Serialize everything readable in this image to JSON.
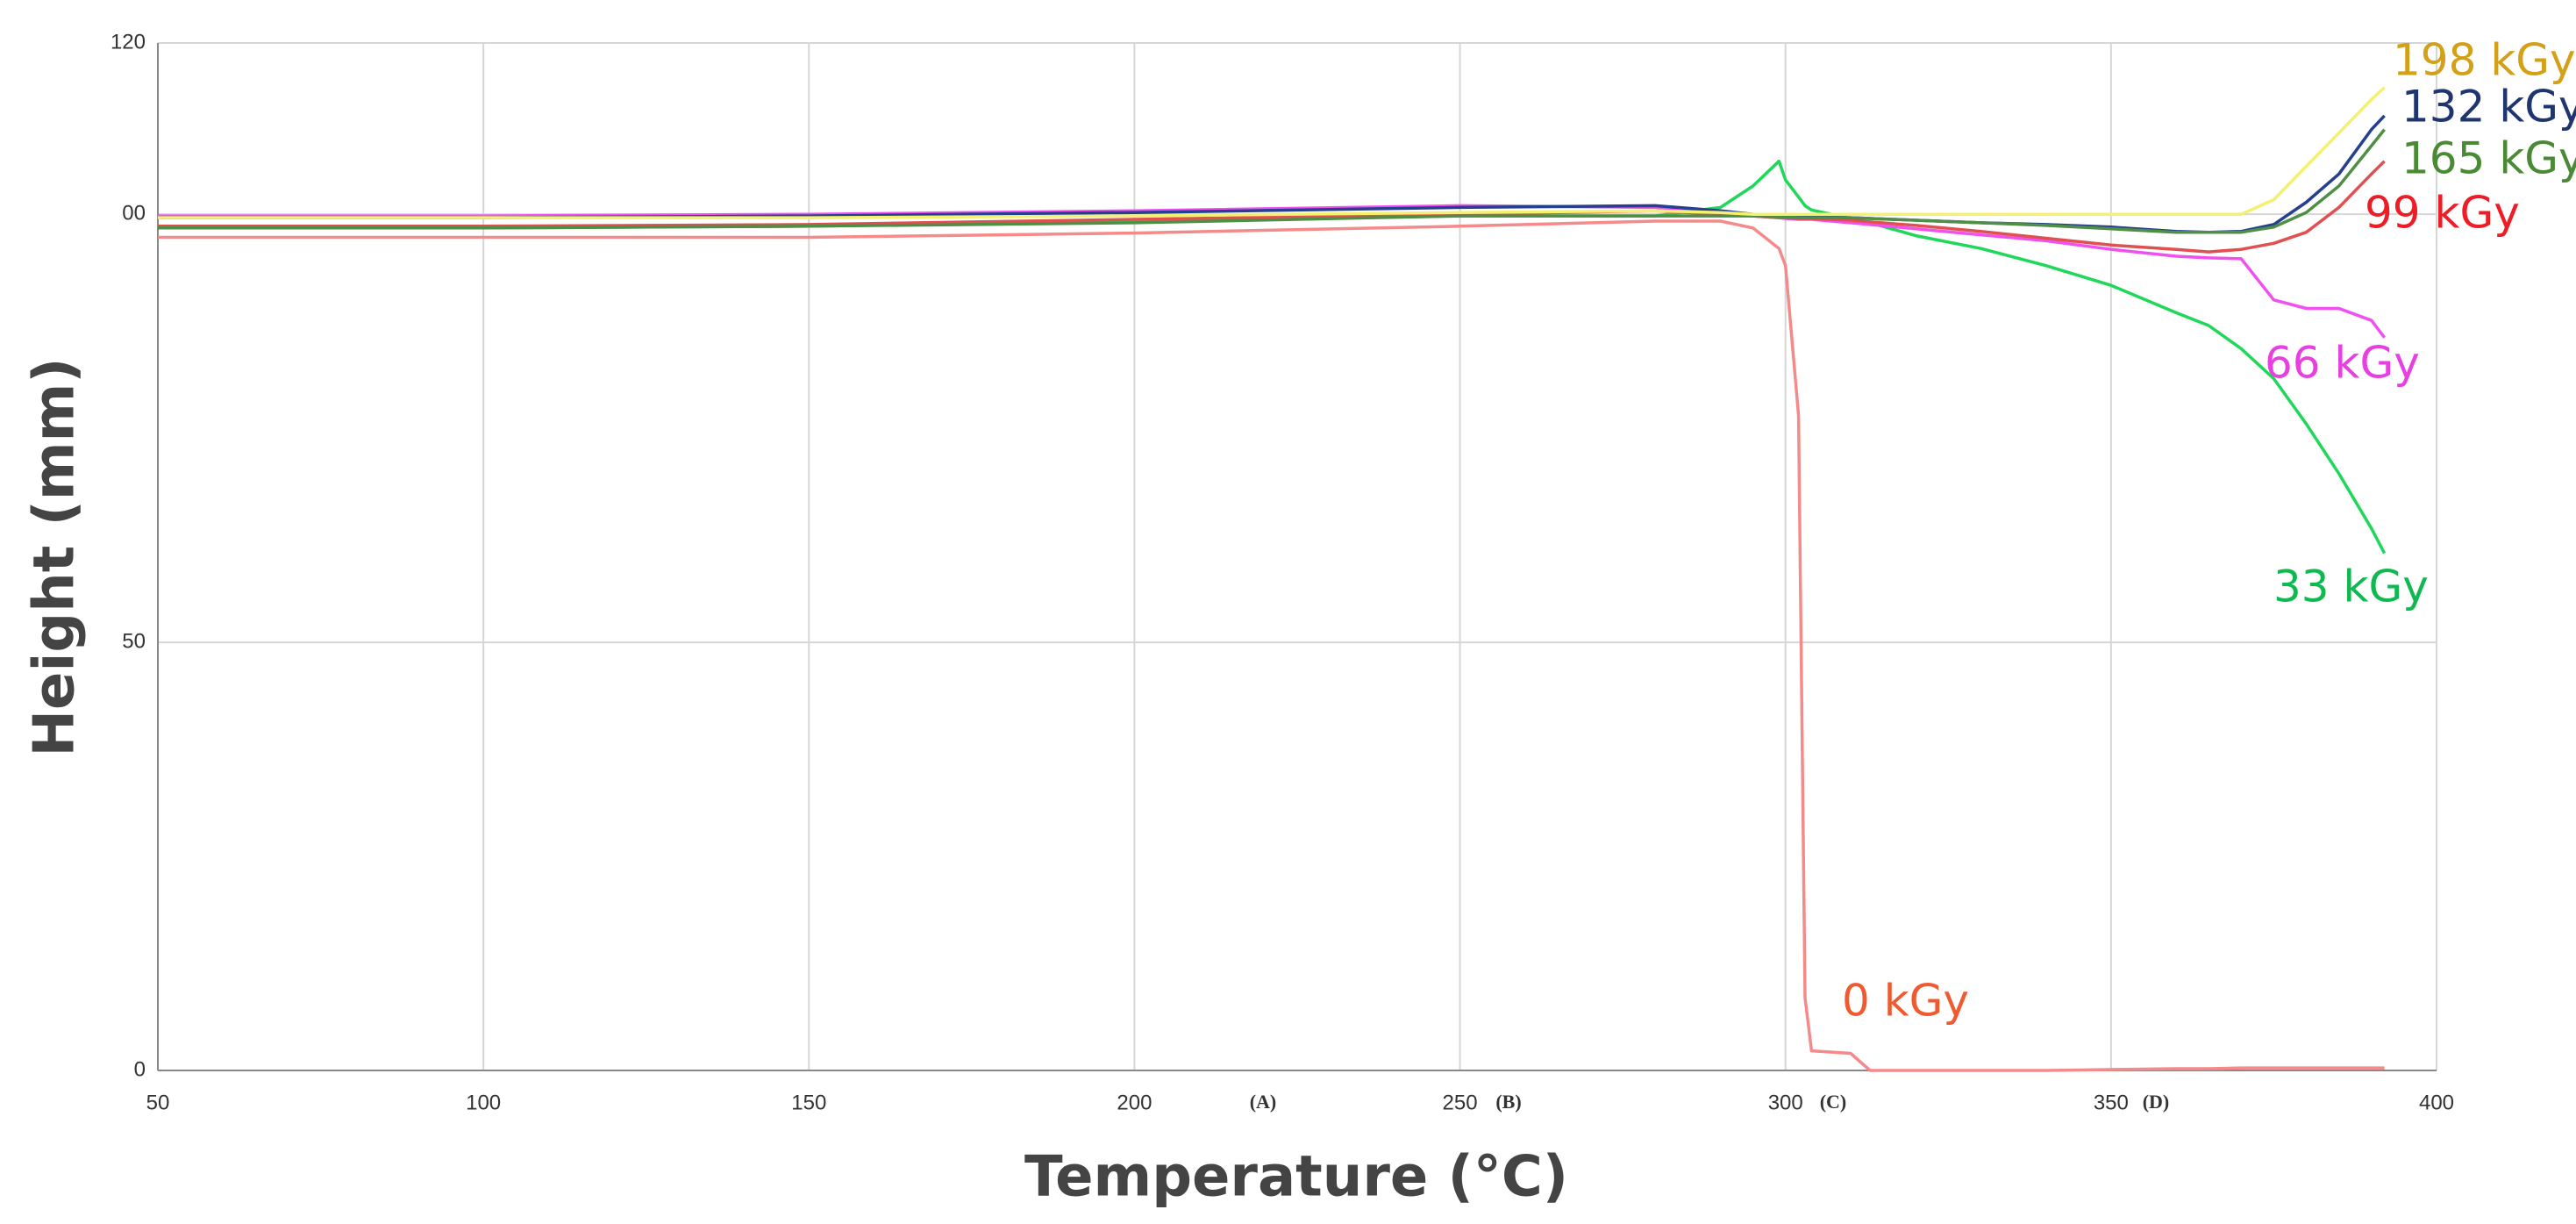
{
  "chart_data": {
    "type": "line",
    "x_label": "Temperature (°C)",
    "y_label": "Height (mm)",
    "xlim": [
      50,
      400
    ],
    "ylim": [
      0,
      120
    ],
    "xticks": [
      50,
      100,
      150,
      200,
      250,
      300,
      350,
      400
    ],
    "yticks": [
      0,
      50,
      {
        "value": 100,
        "label": "00"
      },
      120
    ],
    "grid": true,
    "annotations": [
      "(A)",
      "(B)",
      "(C)",
      "(D)"
    ],
    "x": [
      50,
      100,
      150,
      200,
      250,
      280,
      290,
      295,
      299,
      300,
      302,
      303,
      304,
      310,
      313,
      320,
      330,
      340,
      350,
      360,
      365,
      370,
      375,
      380,
      385,
      390,
      392
    ],
    "series": [
      {
        "name": "0 kGy",
        "color": "#f48a8a",
        "label_color": "#f05a30",
        "values": [
          97.3,
          97.3,
          97.3,
          97.8,
          98.6,
          99.2,
          99.2,
          98.4,
          96,
          94,
          76.5,
          8.5,
          2.3,
          2.0,
          0,
          0,
          0,
          0,
          0.1,
          0.2,
          0.2,
          0.3,
          0.3,
          0.3,
          0.3,
          0.3,
          0.3
        ]
      },
      {
        "name": "33 kGy",
        "color": "#1fd85a",
        "label_color": "#10b850",
        "values": [
          98.4,
          98.4,
          98.6,
          99.2,
          99.8,
          99.8,
          100.8,
          103.3,
          106.2,
          104,
          102,
          101,
          100.5,
          99.5,
          99,
          97.5,
          96,
          94,
          91.7,
          88.5,
          87,
          84.3,
          80.8,
          75.5,
          69.7,
          63.3,
          60.4
        ]
      },
      {
        "name": "66 kGy",
        "color": "#f050f0",
        "label_color": "#e840e0",
        "values": [
          99.8,
          99.8,
          100,
          100.4,
          101,
          100.8,
          100.2,
          99.8,
          99.6,
          99.5,
          99.4,
          99.4,
          99.4,
          99,
          98.8,
          98.3,
          97.6,
          96.9,
          95.9,
          95.1,
          94.9,
          94.8,
          90,
          89,
          89,
          87.6,
          85.6
        ]
      },
      {
        "name": "99 kGy",
        "color": "#e05050",
        "label_color": "#ee1c24",
        "values": [
          98.6,
          98.6,
          98.8,
          99.4,
          100,
          100.4,
          100,
          99.8,
          99.6,
          99.6,
          99.5,
          99.5,
          99.5,
          99.3,
          99.1,
          98.7,
          98,
          97.2,
          96.4,
          95.9,
          95.6,
          95.9,
          96.6,
          97.9,
          100.8,
          104.7,
          106.2
        ]
      },
      {
        "name": "132 kGy",
        "color": "#24408f",
        "label_color": "#1f3570",
        "values": [
          99.6,
          99.6,
          99.8,
          100.2,
          100.8,
          101,
          100.4,
          100,
          99.8,
          99.8,
          99.7,
          99.7,
          99.7,
          99.6,
          99.5,
          99.3,
          99,
          98.8,
          98.5,
          98,
          97.9,
          98,
          98.8,
          101.4,
          104.7,
          109.9,
          111.5
        ]
      },
      {
        "name": "165 kGy",
        "color": "#4f8f45",
        "label_color": "#4a8a35",
        "values": [
          98.4,
          98.4,
          98.6,
          99,
          99.8,
          99.8,
          99.8,
          99.8,
          99.7,
          99.7,
          99.6,
          99.6,
          99.6,
          99.6,
          99.5,
          99.3,
          99,
          98.7,
          98.3,
          97.9,
          97.9,
          97.9,
          98.5,
          100.2,
          103.3,
          108,
          109.9
        ]
      },
      {
        "name": "198 kGy",
        "color": "#f4f070",
        "label_color": "#d4a017",
        "values": [
          99.6,
          99.6,
          99.6,
          99.8,
          100.2,
          100.4,
          100.2,
          100,
          100,
          100,
          100,
          100,
          100,
          100,
          100,
          100,
          100,
          100,
          100,
          100,
          100,
          100,
          101.7,
          105.6,
          109.5,
          113.4,
          114.8
        ]
      }
    ]
  }
}
